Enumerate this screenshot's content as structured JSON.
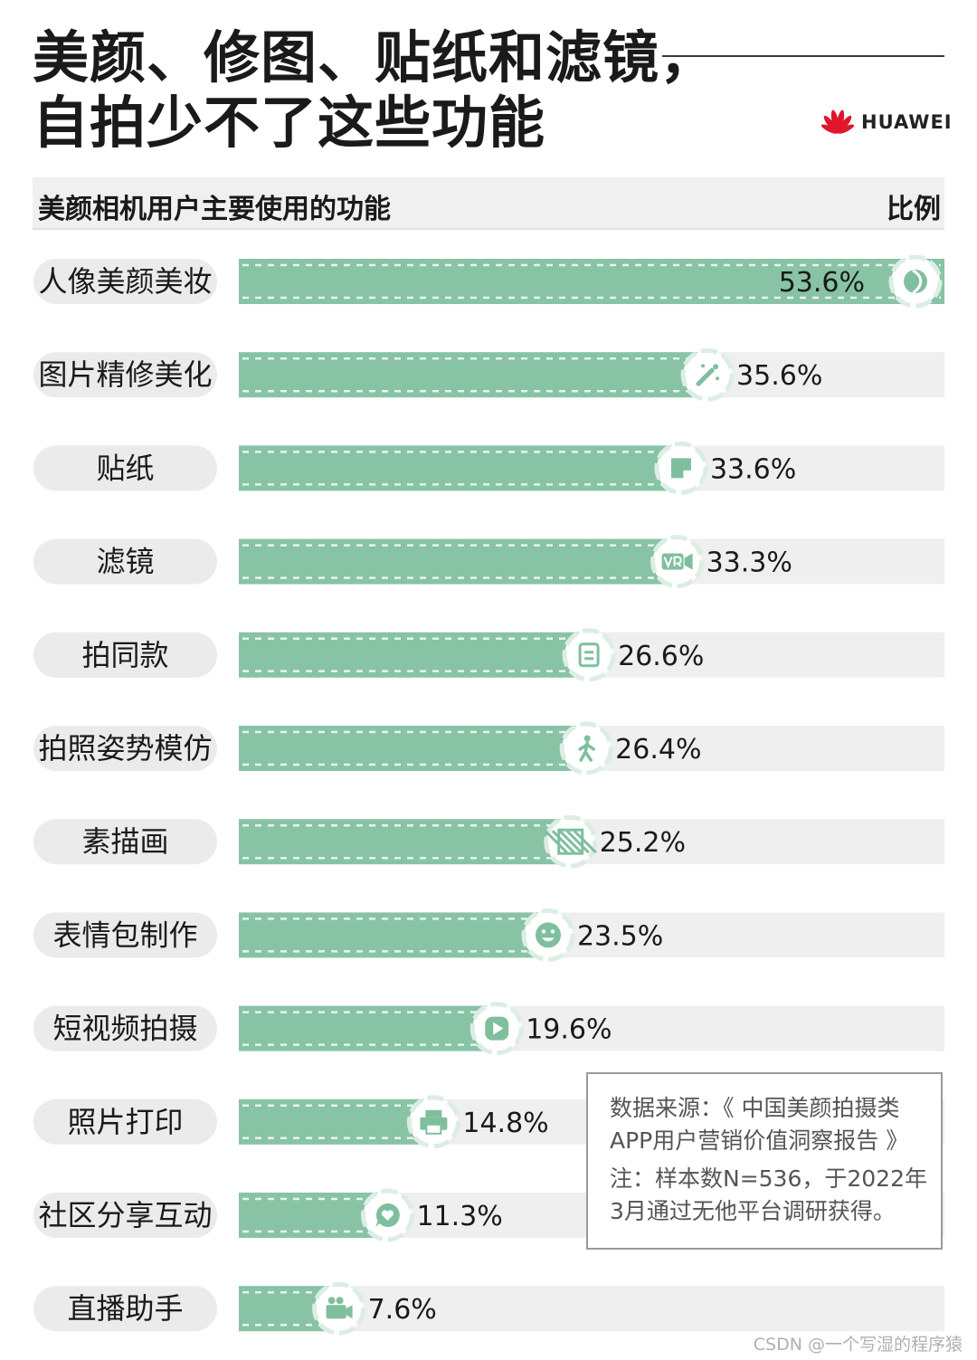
{
  "title": {
    "line1": "美颜、修图、贴纸和滤镜，",
    "line2": "自拍少不了这些功能"
  },
  "brand": {
    "name": "HUAWEI",
    "logo_icon": "huawei-petal-logo",
    "logo_color": "#e0162b"
  },
  "header": {
    "left": "美颜相机用户主要使用的功能",
    "right": "比例"
  },
  "colors": {
    "bar_fill": "#88c3a5",
    "track": "#efefef",
    "dash": "#e8f4ee",
    "icon_ring": "#dceee4",
    "icon_glyph": "#7fbf9e",
    "pill": "#ebebeb"
  },
  "chart_data": {
    "type": "bar",
    "orientation": "horizontal",
    "categories": [
      "人像美颜美妆",
      "图片精修美化",
      "贴纸",
      "滤镜",
      "拍同款",
      "拍照姿势模仿",
      "素描画",
      "表情包制作",
      "短视频拍摄",
      "照片打印",
      "社区分享互动",
      "直播助手"
    ],
    "values": [
      53.6,
      35.6,
      33.6,
      33.3,
      26.6,
      26.4,
      25.2,
      23.5,
      19.6,
      14.8,
      11.3,
      7.6
    ],
    "value_labels": [
      "53.6%",
      "35.6%",
      "33.6%",
      "33.3%",
      "26.6%",
      "26.4%",
      "25.2%",
      "23.5%",
      "19.6%",
      "14.8%",
      "11.3%",
      "7.6%"
    ],
    "icons": [
      "face-icon",
      "magic-wand-icon",
      "sticker-icon",
      "vr-camera-icon",
      "document-icon",
      "walking-person-icon",
      "hatched-square-icon",
      "smiley-icon",
      "play-icon",
      "printer-icon",
      "chat-heart-icon",
      "camera-icon"
    ],
    "xlim": [
      0,
      53.6
    ],
    "grid": false,
    "legend": "none"
  },
  "note": {
    "source_line1": "数据来源：《 中国美颜拍摄类",
    "source_line2": "APP用户营销价值洞察报告 》",
    "note_line1": "注：样本数N=536，于2022年",
    "note_line2": "3月通过无他平台调研获得。"
  },
  "watermark": "CSDN @一个写湿的程序猿"
}
